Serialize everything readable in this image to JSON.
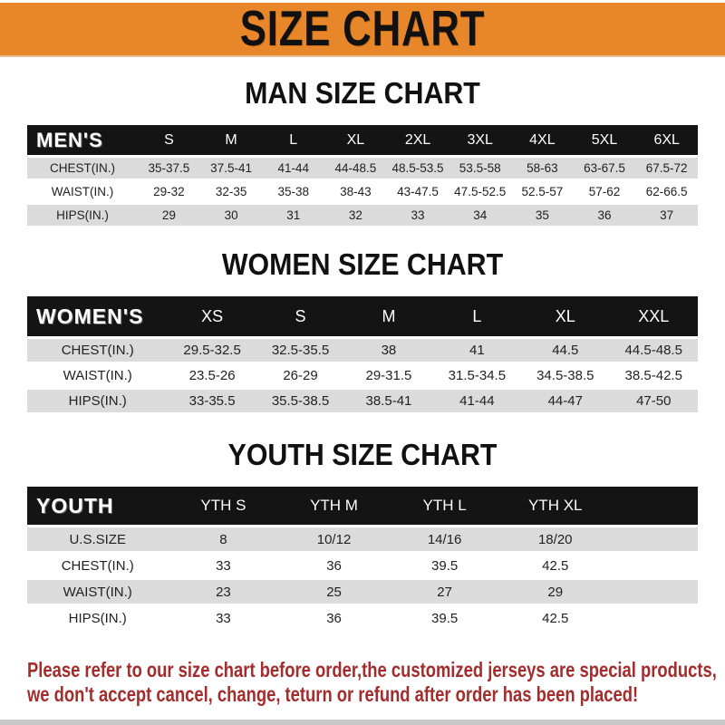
{
  "title": "SIZE CHART",
  "sections": [
    {
      "heading": "MAN SIZE CHART",
      "table": {
        "header_label": "MEN'S",
        "columns": [
          "S",
          "M",
          "L",
          "XL",
          "2XL",
          "3XL",
          "4XL",
          "5XL",
          "6XL"
        ],
        "rows": [
          {
            "label": "CHEST(IN.)",
            "values": [
              "35-37.5",
              "37.5-41",
              "41-44",
              "44-48.5",
              "48.5-53.5",
              "53.5-58",
              "58-63",
              "63-67.5",
              "67.5-72"
            ]
          },
          {
            "label": "WAIST(IN.)",
            "values": [
              "29-32",
              "32-35",
              "35-38",
              "38-43",
              "43-47.5",
              "47.5-52.5",
              "52.5-57",
              "57-62",
              "62-66.5"
            ]
          },
          {
            "label": "HIPS(IN.)",
            "values": [
              "29",
              "30",
              "31",
              "32",
              "33",
              "34",
              "35",
              "36",
              "37"
            ]
          }
        ]
      }
    },
    {
      "heading": "WOMEN SIZE CHART",
      "table": {
        "header_label": "WOMEN'S",
        "columns": [
          "XS",
          "S",
          "M",
          "L",
          "XL",
          "XXL"
        ],
        "rows": [
          {
            "label": "CHEST(IN.)",
            "values": [
              "29.5-32.5",
              "32.5-35.5",
              "38",
              "41",
              "44.5",
              "44.5-48.5"
            ]
          },
          {
            "label": "WAIST(IN.)",
            "values": [
              "23.5-26",
              "26-29",
              "29-31.5",
              "31.5-34.5",
              "34.5-38.5",
              "38.5-42.5"
            ]
          },
          {
            "label": "HIPS(IN.)",
            "values": [
              "33-35.5",
              "35.5-38.5",
              "38.5-41",
              "41-44",
              "44-47",
              "47-50"
            ]
          }
        ]
      }
    },
    {
      "heading": "YOUTH SIZE CHART",
      "table": {
        "header_label": "YOUTH",
        "columns": [
          "YTH S",
          "YTH M",
          "YTH L",
          "YTH XL"
        ],
        "rows": [
          {
            "label": "U.S.SIZE",
            "values": [
              "8",
              "10/12",
              "14/16",
              "18/20"
            ]
          },
          {
            "label": "CHEST(IN.)",
            "values": [
              "33",
              "36",
              "39.5",
              "42.5"
            ]
          },
          {
            "label": "WAIST(IN.)",
            "values": [
              "23",
              "25",
              "27",
              "29"
            ]
          },
          {
            "label": "HIPS(IN.)",
            "values": [
              "33",
              "36",
              "39.5",
              "42.5"
            ]
          }
        ]
      }
    }
  ],
  "footer": {
    "line1": "Please refer to our size chart before order,the customized jerseys are special products,",
    "line2": "we don't accept cancel, change, teturn or refund after order has been placed!"
  },
  "colors": {
    "banner": "#E8872A",
    "bar": "#141414",
    "stripe": "#DBDBDB",
    "note": "#A32C2C",
    "bottombar": "#C8C8C8"
  }
}
